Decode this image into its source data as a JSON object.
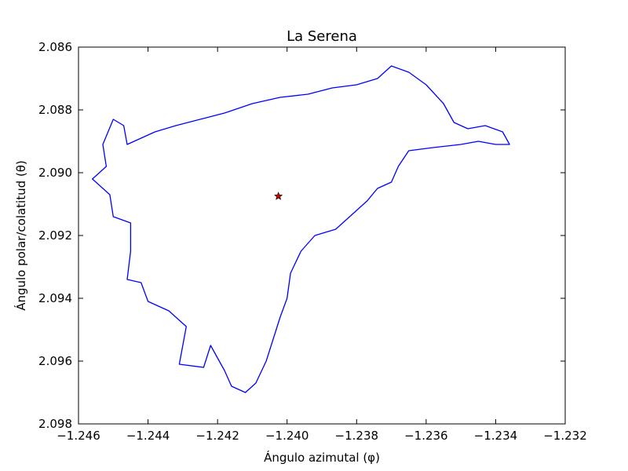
{
  "chart_data": {
    "type": "line",
    "title": "La Serena",
    "xlabel": "Ángulo azimutal (φ)",
    "ylabel": "Ángulo polar/colatitud (θ)",
    "xlim": [
      -1.246,
      -1.232
    ],
    "ylim": [
      2.098,
      2.086
    ],
    "y_inverted": true,
    "x_ticks": [
      "−1.246",
      "−1.244",
      "−1.242",
      "−1.240",
      "−1.238",
      "−1.236",
      "−1.234",
      "−1.232"
    ],
    "y_ticks": [
      "2.086",
      "2.088",
      "2.090",
      "2.092",
      "2.094",
      "2.096",
      "2.098"
    ],
    "grid": false,
    "series": [
      {
        "color": "#0000ff",
        "closed": true,
        "points": [
          [
            -1.238,
            2.0872
          ],
          [
            -1.2374,
            2.087
          ],
          [
            -1.237,
            2.0866
          ],
          [
            -1.2365,
            2.0868
          ],
          [
            -1.236,
            2.0872
          ],
          [
            -1.2355,
            2.0878
          ],
          [
            -1.2352,
            2.0884
          ],
          [
            -1.2348,
            2.0886
          ],
          [
            -1.2343,
            2.0885
          ],
          [
            -1.2338,
            2.0887
          ],
          [
            -1.2336,
            2.0891
          ],
          [
            -1.234,
            2.0891
          ],
          [
            -1.2345,
            2.089
          ],
          [
            -1.235,
            2.0891
          ],
          [
            -1.2358,
            2.0892
          ],
          [
            -1.2365,
            2.0893
          ],
          [
            -1.2368,
            2.0898
          ],
          [
            -1.237,
            2.0903
          ],
          [
            -1.2374,
            2.0905
          ],
          [
            -1.2377,
            2.0909
          ],
          [
            -1.238,
            2.0912
          ],
          [
            -1.2386,
            2.0918
          ],
          [
            -1.2392,
            2.092
          ],
          [
            -1.2396,
            2.0925
          ],
          [
            -1.2399,
            2.0932
          ],
          [
            -1.24,
            2.094
          ],
          [
            -1.2402,
            2.0946
          ],
          [
            -1.2404,
            2.0953
          ],
          [
            -1.2406,
            2.096
          ],
          [
            -1.2409,
            2.0967
          ],
          [
            -1.2412,
            2.097
          ],
          [
            -1.2416,
            2.0968
          ],
          [
            -1.2418,
            2.0963
          ],
          [
            -1.242,
            2.0959
          ],
          [
            -1.2422,
            2.0955
          ],
          [
            -1.2424,
            2.0962
          ],
          [
            -1.2431,
            2.0961
          ],
          [
            -1.2429,
            2.0949
          ],
          [
            -1.2434,
            2.0944
          ],
          [
            -1.244,
            2.0941
          ],
          [
            -1.2442,
            2.0935
          ],
          [
            -1.2446,
            2.0934
          ],
          [
            -1.2445,
            2.0925
          ],
          [
            -1.2445,
            2.0916
          ],
          [
            -1.245,
            2.0914
          ],
          [
            -1.2451,
            2.0907
          ],
          [
            -1.2456,
            2.0902
          ],
          [
            -1.2452,
            2.0898
          ],
          [
            -1.2453,
            2.0891
          ],
          [
            -1.245,
            2.0883
          ],
          [
            -1.2447,
            2.0885
          ],
          [
            -1.2446,
            2.0891
          ],
          [
            -1.2438,
            2.0887
          ],
          [
            -1.2432,
            2.0885
          ],
          [
            -1.2425,
            2.0883
          ],
          [
            -1.2418,
            2.0881
          ],
          [
            -1.241,
            2.0878
          ],
          [
            -1.2402,
            2.0876
          ],
          [
            -1.2394,
            2.0875
          ],
          [
            -1.2387,
            2.0873
          ]
        ]
      }
    ],
    "markers": [
      {
        "x": -1.24025,
        "y": 2.09075,
        "shape": "star",
        "color": "#cc0000"
      }
    ]
  }
}
